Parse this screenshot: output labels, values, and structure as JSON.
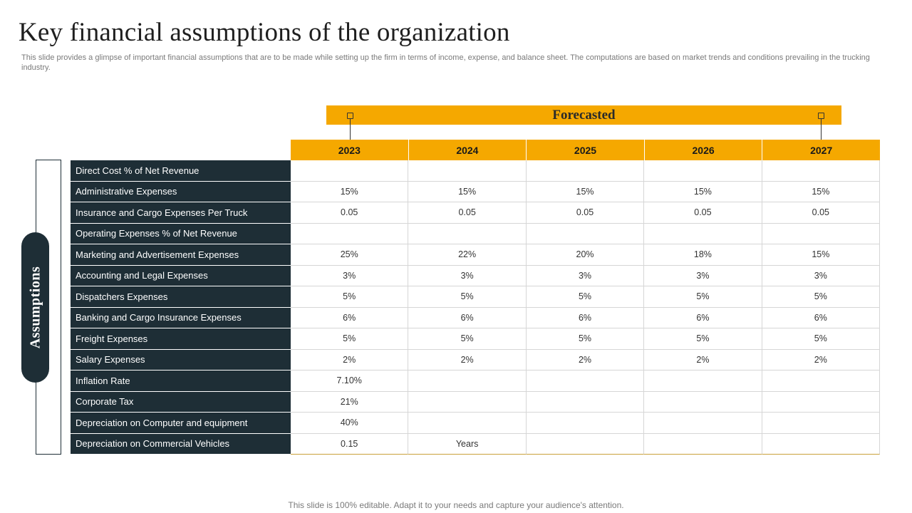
{
  "title": "Key financial assumptions of the organization",
  "subtitle": "This slide provides a glimpse of important financial assumptions that are to be made while setting up the firm in terms of income, expense, and balance sheet. The computations are based on market trends and conditions prevailing in the trucking industry.",
  "forecast_label": "Forecasted",
  "side_label": "Assumptions",
  "years": [
    "2023",
    "2024",
    "2025",
    "2026",
    "2027"
  ],
  "rows": [
    {
      "label": "Direct Cost % of Net Revenue",
      "values": [
        "",
        "",
        "",
        "",
        ""
      ]
    },
    {
      "label": "Administrative Expenses",
      "values": [
        "15%",
        "15%",
        "15%",
        "15%",
        "15%"
      ]
    },
    {
      "label": "Insurance  and Cargo Expenses Per Truck",
      "values": [
        "0.05",
        "0.05",
        "0.05",
        "0.05",
        "0.05"
      ]
    },
    {
      "label": "Operating Expenses % of Net Revenue",
      "values": [
        "",
        "",
        "",
        "",
        ""
      ]
    },
    {
      "label": "Marketing and Advertisement Expenses",
      "values": [
        "25%",
        "22%",
        "20%",
        "18%",
        "15%"
      ]
    },
    {
      "label": "Accounting and Legal Expenses",
      "values": [
        "3%",
        "3%",
        "3%",
        "3%",
        "3%"
      ]
    },
    {
      "label": "Dispatchers Expenses",
      "values": [
        "5%",
        "5%",
        "5%",
        "5%",
        "5%"
      ]
    },
    {
      "label": "Banking and Cargo Insurance Expenses",
      "values": [
        "6%",
        "6%",
        "6%",
        "6%",
        "6%"
      ]
    },
    {
      "label": "Freight Expenses",
      "values": [
        "5%",
        "5%",
        "5%",
        "5%",
        "5%"
      ]
    },
    {
      "label": "Salary Expenses",
      "values": [
        "2%",
        "2%",
        "2%",
        "2%",
        "2%"
      ]
    },
    {
      "label": "Inflation Rate",
      "values": [
        "7.10%",
        "",
        "",
        "",
        ""
      ]
    },
    {
      "label": "Corporate  Tax",
      "values": [
        "21%",
        "",
        "",
        "",
        ""
      ]
    },
    {
      "label": "Depreciation  on Computer and equipment",
      "values": [
        "40%",
        "",
        "",
        "",
        ""
      ]
    },
    {
      "label": "Depreciation on Commercial Vehicles",
      "values": [
        "0.15",
        "Years",
        "",
        "",
        ""
      ]
    }
  ],
  "footer": "This slide is 100% editable. Adapt it to your needs and capture your audience's attention.",
  "colors": {
    "accent": "#f5a800",
    "dark": "#1e2e36"
  }
}
